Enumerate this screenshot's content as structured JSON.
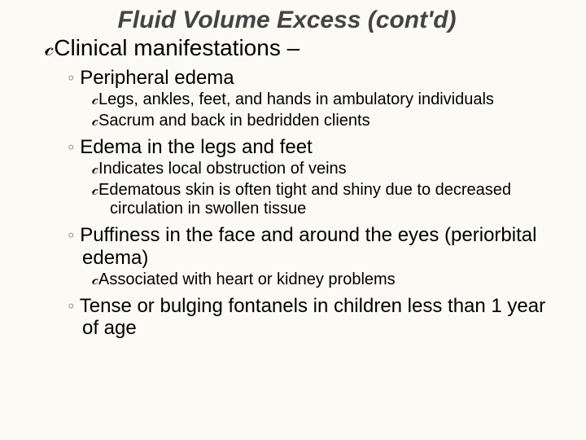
{
  "title": "Fluid Volume Excess (cont'd)",
  "l1": {
    "text": "Clinical manifestations –"
  },
  "s1": {
    "heading": "Peripheral edema",
    "b1": "Legs, ankles, feet, and hands in ambulatory individuals",
    "b2": "Sacrum and back in bedridden clients"
  },
  "s2": {
    "heading": "Edema in the legs and feet",
    "b1": "Indicates local obstruction of veins",
    "b2": "Edematous skin is often tight and shiny due to decreased circulation in swollen tissue"
  },
  "s3": {
    "heading": "Puffiness in the face and around the eyes (periorbital edema)",
    "b1": "Associated with heart or kidney problems"
  },
  "s4": {
    "heading": "Tense or bulging fontanels in children less than 1 year of age"
  },
  "bullets": {
    "script": "𝒸",
    "ring": "◦"
  }
}
